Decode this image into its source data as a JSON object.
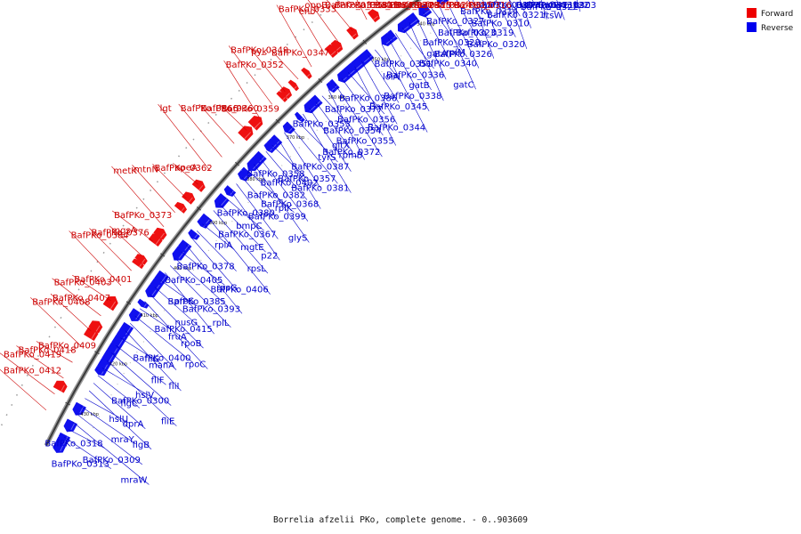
{
  "caption": "Borrelia afzelii PKo, complete genome. - 0..903609",
  "legend": [
    {
      "label": "Forward",
      "color": "#ee0000"
    },
    {
      "label": "Reverse",
      "color": "#0000ee"
    }
  ],
  "colors": {
    "forward": "#ee0000",
    "reverse": "#0000ee",
    "backbone": "#666666"
  },
  "ticks": [
    "310 kbp",
    "320 kbp",
    "330 kbp",
    "340 kbp",
    "350 kbp",
    "360 kbp",
    "370 kbp",
    "380 kbp",
    "390 kbp",
    "400 kbp",
    "410 kbp",
    "420 kbp",
    "430 kbp"
  ],
  "reverse_labels": [
    "BafPKo_0303",
    "ftsZ",
    "BafPKo_0312",
    "BafPKo_0322",
    "BafPKo_0311",
    "murF",
    "ftsW",
    "BafPKo_0321",
    "BafPKo_0307",
    "BafPKo_0317",
    "BafPKo_0310",
    "BafPKo_0320",
    "BafPKo_0314",
    "BafPKo_0319",
    "BafPKo_0323",
    "BafPKo_0326",
    "BafPKo_0327",
    "BafPKo_0328",
    "BafPKo_0340",
    "gatC",
    "rplM",
    "gatA",
    "BafPKo_0336",
    "BafPKo_0338",
    "BafPKo_0351",
    "gatB",
    "BafPKo_0345",
    "BafPKo_0344",
    "lolA",
    "BafPKo_0386",
    "BafPKo_0356",
    "BafPKo_0355",
    "BafPKo_0377",
    "BafPKo_0354",
    "BafPKo_0372",
    "rpmB",
    "BafPKo_0353",
    "gltX",
    "BafPKo_0387",
    "BafPKo_0381",
    "tyrS",
    "BafPKo_0357",
    "BafPKo_0402",
    "BafPKo_0368",
    "BafPKo_0358",
    "BafPKo_0382",
    "BafPKo_0399",
    "glyS",
    "rplK",
    "BafPKo_0380",
    "BafPKo_0367",
    "p22",
    "bmpC",
    "mgtE",
    "rpsL",
    "BafPKo_0406",
    "rplA",
    "BafPKo_0378",
    "rpsG",
    "BafPKo_0393",
    "BafPKo_0405",
    "BafPKo_0385",
    "rplL",
    "BafPKo_0415",
    "proS",
    "nusG",
    "rpoB",
    "rpoC",
    "fruA",
    "BafPKo_0400",
    "manA",
    "fliI",
    "fliG",
    "fliF",
    "BafPKo_0300",
    "fliE",
    "hslV",
    "flgC",
    "dprA",
    "flgB",
    "hslU",
    "mraY",
    "BafPKo_0309",
    "mraW",
    "BafPKo_0318",
    "BafPKo_0313"
  ],
  "forward_labels": [
    "BafPKo_0316",
    "BafPKo_0315",
    "BafPKo_0324",
    "BafPKo_0325",
    "BafPKo_0329",
    "BafPKo_0330",
    "BafPKo_0334",
    "BafPKo_0331",
    "BafPKo_0335",
    "oppB",
    "eno",
    "BafPKo_0333",
    "BafPKo_0347",
    "pyk",
    "BafPKo_0349",
    "BafPKo_0352",
    "BafPKo_0359",
    "BafPKo_0360",
    "BafPKo_0366",
    "lgt",
    "apeA",
    "BafPKo_0362",
    "mtnN",
    "metK",
    "BafPKo_0373",
    "mgsA",
    "BafPKo_0376",
    "BafPKo_0384",
    "BafPKo_0401",
    "BafPKo_0403",
    "BafPKo_0407",
    "BafPKo_0408",
    "BafPKo_0409",
    "BafPKo_0418",
    "BafPKo_0419",
    "BafPKo_0412"
  ]
}
